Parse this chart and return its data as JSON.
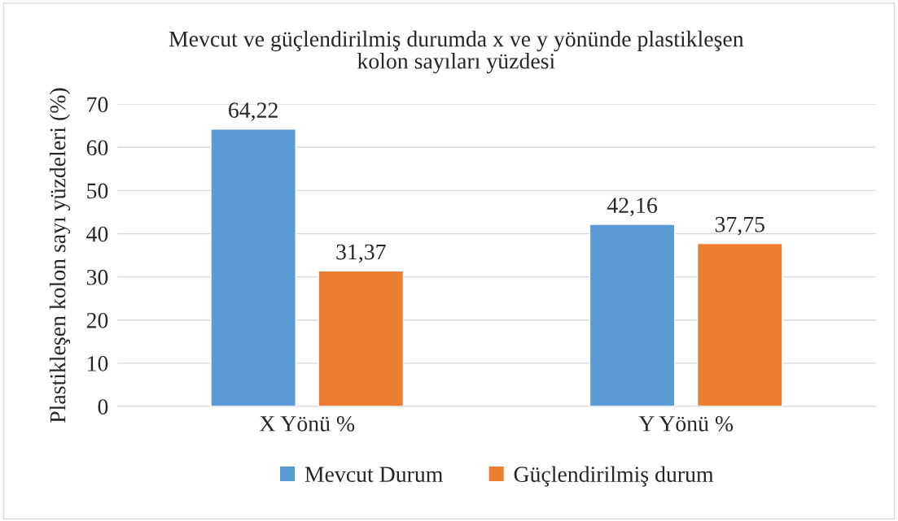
{
  "chart_data": {
    "type": "bar",
    "title": "Mevcut ve güçlendirilmiş durumda x ve y yönünde plastikleşen\nkolon sayıları yüzdesi",
    "ylabel": "Plastikleşen kolon sayı yüzdeleri (%)",
    "categories": [
      "X Yönü %",
      "Y Yönü %"
    ],
    "series": [
      {
        "name": "Mevcut Durum",
        "color": "#5b9bd5",
        "values": [
          64.22,
          42.16
        ],
        "value_labels": [
          "64,22",
          "42,16"
        ]
      },
      {
        "name": "Güçlendirilmiş durum",
        "color": "#ed7d31",
        "values": [
          31.37,
          37.75
        ],
        "value_labels": [
          "31,37",
          "37,75"
        ]
      }
    ],
    "ylim": [
      0,
      70
    ],
    "yticks": [
      0,
      10,
      20,
      30,
      40,
      50,
      60,
      70
    ],
    "grid": "y",
    "legend": "bottom"
  }
}
